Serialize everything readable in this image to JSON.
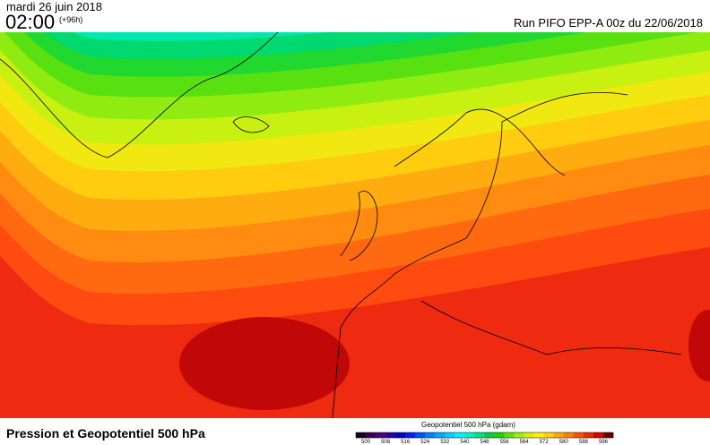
{
  "header": {
    "date": "mardi 26 juin 2018",
    "time": "02:00",
    "lead": "(+96h)",
    "run": "Run PIFO EPP-A 00z du 22/06/2018"
  },
  "footer": {
    "title": "Pression et Geopotentiel 500 hPa"
  },
  "colorbar": {
    "title": "Geopotentiel 500 hPa (gdam)",
    "ticks": [
      500,
      508,
      516,
      524,
      532,
      540,
      548,
      556,
      564,
      572,
      580,
      588,
      596
    ],
    "colors": [
      "#1a0020",
      "#3a0050",
      "#50007a",
      "#2a00a0",
      "#0000c8",
      "#0020f0",
      "#0050ff",
      "#0080ff",
      "#00a8ff",
      "#00d0ff",
      "#00f0ff",
      "#00f0c0",
      "#00e080",
      "#00d040",
      "#20d000",
      "#60e000",
      "#a0f000",
      "#d8f000",
      "#fff000",
      "#ffd000",
      "#ffa800",
      "#ff8000",
      "#ff5000",
      "#f02800",
      "#d80000",
      "#600000"
    ]
  }
}
